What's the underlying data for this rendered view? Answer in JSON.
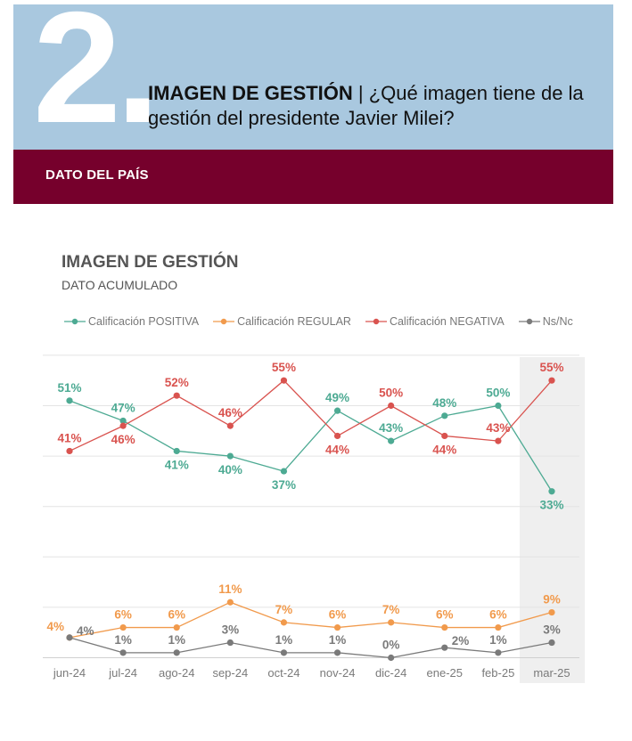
{
  "header": {
    "number": "2.",
    "title_bold": "IMAGEN DE GESTIÓN",
    "title_rest": " | ¿Qué imagen tiene de la gestión del presidente Javier Milei?"
  },
  "band": {
    "label": "DATO DEL PAÍS"
  },
  "colors": {
    "header_bg": "#a9c8df",
    "band_bg": "#76002c",
    "highlight_bg": "#efefef"
  },
  "chart_data": {
    "type": "line",
    "title": "IMAGEN DE GESTIÓN",
    "subtitle": "DATO ACUMULADO",
    "legend_position": "top",
    "grid": true,
    "ylim": [
      0,
      60
    ],
    "highlight_category": "mar-25",
    "categories": [
      "jun-24",
      "jul-24",
      "ago-24",
      "sep-24",
      "oct-24",
      "nov-24",
      "dic-24",
      "ene-25",
      "feb-25",
      "mar-25"
    ],
    "series": [
      {
        "name": "Calificación POSITIVA",
        "color": "#4daa93",
        "values": [
          51,
          47,
          41,
          40,
          37,
          49,
          43,
          48,
          50,
          33
        ],
        "labels": [
          "51%",
          "47%",
          "41%",
          "40%",
          "37%",
          "49%",
          "43%",
          "48%",
          "50%",
          "33%"
        ],
        "label_side": [
          "above",
          "above",
          "below",
          "below",
          "below",
          "above",
          "above",
          "above",
          "above",
          "below"
        ]
      },
      {
        "name": "Calificación REGULAR",
        "color": "#f19a4c",
        "values": [
          4,
          6,
          6,
          11,
          7,
          6,
          7,
          6,
          6,
          9
        ],
        "labels": [
          "4%",
          "6%",
          "6%",
          "11%",
          "7%",
          "6%",
          "7%",
          "6%",
          "6%",
          "9%"
        ],
        "label_side": [
          "left",
          "above",
          "above",
          "above",
          "above",
          "above",
          "above",
          "above",
          "above",
          "above"
        ]
      },
      {
        "name": "Calificación NEGATIVA",
        "color": "#d9534f",
        "values": [
          41,
          46,
          52,
          46,
          55,
          44,
          50,
          44,
          43,
          55
        ],
        "labels": [
          "41%",
          "46%",
          "52%",
          "46%",
          "55%",
          "44%",
          "50%",
          "44%",
          "43%",
          "55%"
        ],
        "label_side": [
          "above",
          "below",
          "above",
          "above",
          "above",
          "below",
          "above",
          "below",
          "above",
          "above"
        ]
      },
      {
        "name": "Ns/Nc",
        "color": "#7a7a7a",
        "values": [
          4,
          1,
          1,
          3,
          1,
          1,
          0,
          2,
          1,
          3
        ],
        "labels": [
          "4%",
          "1%",
          "1%",
          "3%",
          "1%",
          "1%",
          "0%",
          "2%",
          "1%",
          "3%"
        ],
        "label_side": [
          "right",
          "above",
          "above",
          "above",
          "above",
          "above",
          "above",
          "right",
          "above",
          "above"
        ]
      }
    ]
  }
}
